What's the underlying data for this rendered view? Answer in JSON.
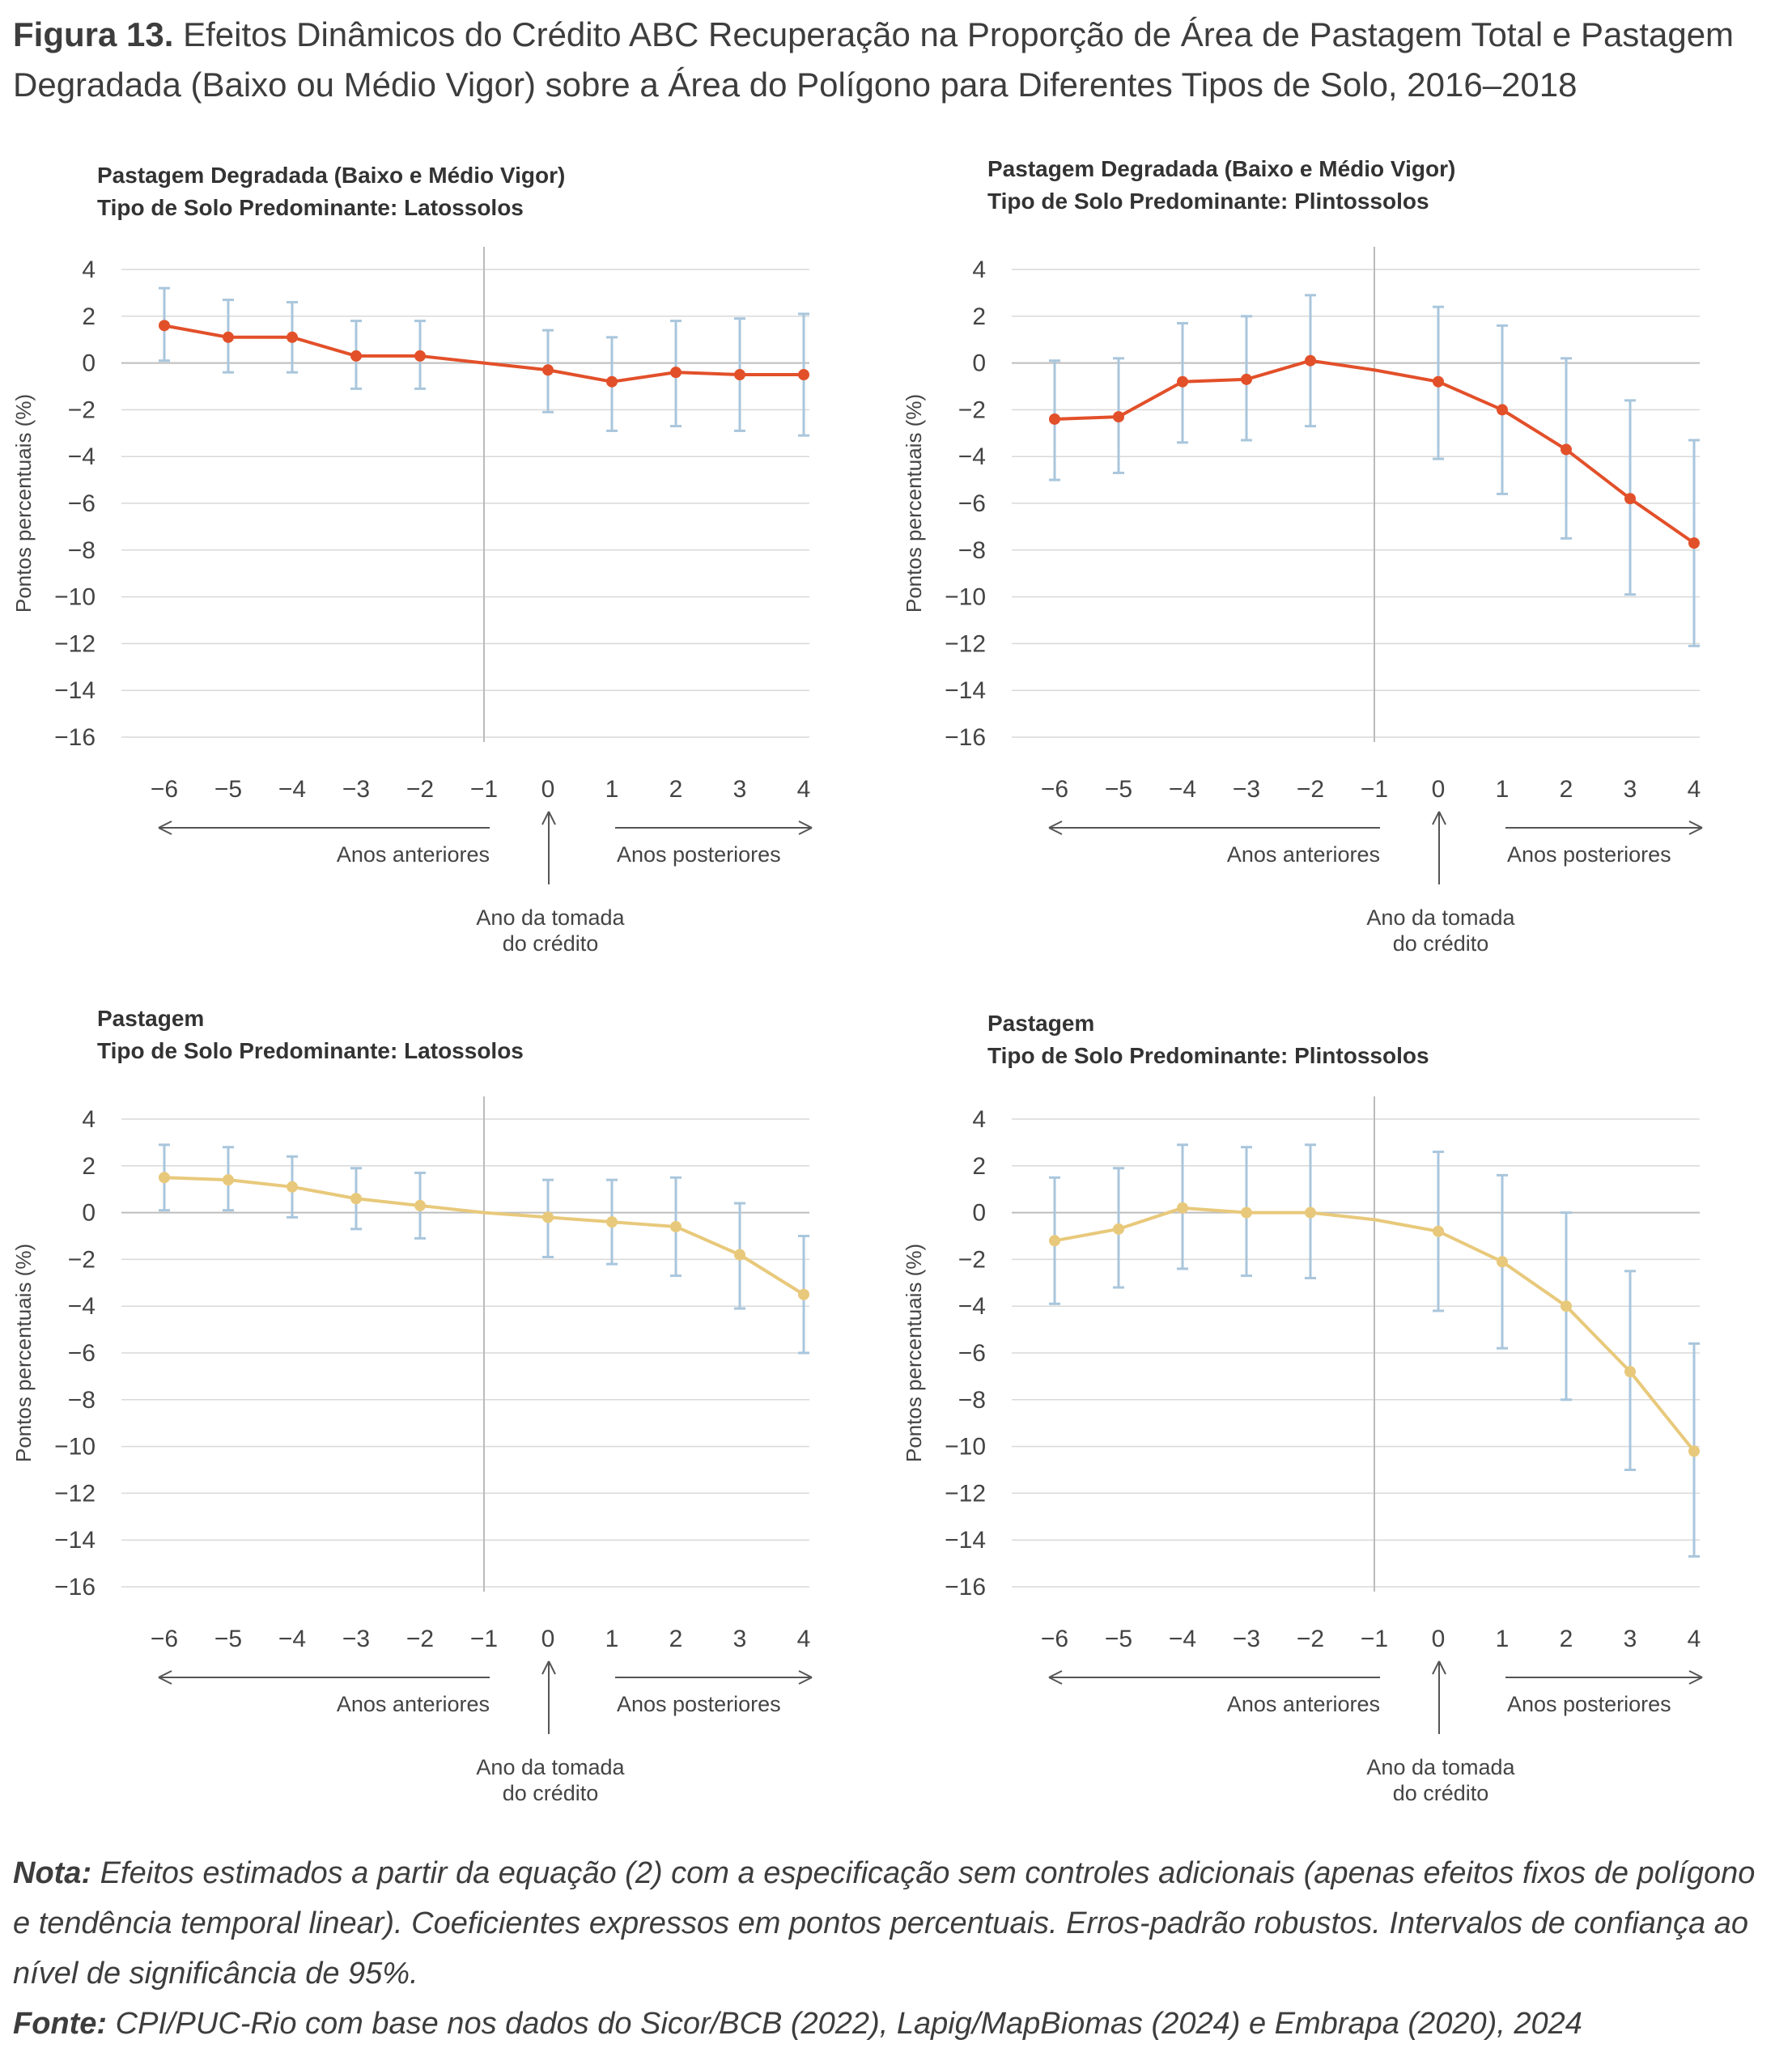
{
  "figure": {
    "label": "Figura 13.",
    "title": "Efeitos Dinâmicos do Crédito ABC Recuperação na Proporção de Área de Pastagem Total e Pastagem Degradada (Baixo ou Médio Vigor) sobre a Área do Polígono para Diferentes Tipos de Solo, 2016–2018"
  },
  "colors": {
    "degradada": "#e2502a",
    "pastagem": "#e8c97b",
    "error_bar": "#a9c6dc",
    "gridline": "#d9d9d9",
    "axis": "#bbbbbb"
  },
  "chart_data": [
    {
      "type": "line",
      "title_line1": "Pastagem Degradada (Baixo e Médio Vigor)",
      "title_line2": "Tipo de Solo Predominante: Latossolos",
      "ylabel": "Pontos percentuais (%)",
      "ylim": [
        -16,
        4
      ],
      "yticks": [
        "4",
        "2",
        "0",
        "−2",
        "−4",
        "−6",
        "−8",
        "−10",
        "−12",
        "−14",
        "−16"
      ],
      "xticks": [
        "−6",
        "−5",
        "−4",
        "−3",
        "−2",
        "−1",
        "0",
        "1",
        "2",
        "3",
        "4"
      ],
      "x": [
        -6,
        -5,
        -4,
        -3,
        -2,
        -1,
        0,
        1,
        2,
        3,
        4
      ],
      "series": [
        {
          "color": "#e2502a",
          "values": [
            1.6,
            1.1,
            1.1,
            0.3,
            0.3,
            0,
            -0.3,
            -0.8,
            -0.4,
            -0.5,
            -0.5
          ],
          "lower": [
            0.1,
            -0.4,
            -0.4,
            -1.1,
            -1.1,
            null,
            -2.1,
            -2.9,
            -2.7,
            -2.9,
            -3.1
          ],
          "upper": [
            3.2,
            2.7,
            2.6,
            1.8,
            1.8,
            null,
            1.4,
            1.1,
            1.8,
            1.9,
            2.1
          ]
        }
      ],
      "annotations": {
        "before": "Anos anteriores",
        "after": "Anos posteriores",
        "event_line1": "Ano da tomada",
        "event_line2": "do crédito"
      }
    },
    {
      "type": "line",
      "title_line1": "Pastagem Degradada (Baixo e Médio Vigor)",
      "title_line2": "Tipo de Solo Predominante: Plintossolos",
      "ylabel": "Pontos percentuais (%)",
      "ylim": [
        -16,
        4
      ],
      "yticks": [
        "4",
        "2",
        "0",
        "−2",
        "−4",
        "−6",
        "−8",
        "−10",
        "−12",
        "−14",
        "−16"
      ],
      "xticks": [
        "−6",
        "−5",
        "−4",
        "−3",
        "−2",
        "−1",
        "0",
        "1",
        "2",
        "3",
        "4"
      ],
      "x": [
        -6,
        -5,
        -4,
        -3,
        -2,
        -1,
        0,
        1,
        2,
        3,
        4
      ],
      "series": [
        {
          "color": "#e2502a",
          "values": [
            -2.4,
            -2.3,
            -0.8,
            -0.7,
            0.1,
            -0.3,
            -0.8,
            -2,
            -3.7,
            -5.8,
            -7.7
          ],
          "lower": [
            -5,
            -4.7,
            -3.4,
            -3.3,
            -2.7,
            null,
            -4.1,
            -5.6,
            -7.5,
            -9.9,
            -12.1
          ],
          "upper": [
            0.1,
            0.2,
            1.7,
            2,
            2.9,
            null,
            2.4,
            1.6,
            0.2,
            -1.6,
            -3.3
          ]
        }
      ],
      "annotations": {
        "before": "Anos anteriores",
        "after": "Anos posteriores",
        "event_line1": "Ano da tomada",
        "event_line2": "do crédito"
      }
    },
    {
      "type": "line",
      "title_line1": "Pastagem",
      "title_line2": "Tipo de Solo Predominante: Latossolos",
      "ylabel": "Pontos percentuais (%)",
      "ylim": [
        -16,
        4
      ],
      "yticks": [
        "4",
        "2",
        "0",
        "−2",
        "−4",
        "−6",
        "−8",
        "−10",
        "−12",
        "−14",
        "−16"
      ],
      "xticks": [
        "−6",
        "−5",
        "−4",
        "−3",
        "−2",
        "−1",
        "0",
        "1",
        "2",
        "3",
        "4"
      ],
      "x": [
        -6,
        -5,
        -4,
        -3,
        -2,
        -1,
        0,
        1,
        2,
        3,
        4
      ],
      "series": [
        {
          "color": "#e8c97b",
          "values": [
            1.5,
            1.4,
            1.1,
            0.6,
            0.3,
            0,
            -0.2,
            -0.4,
            -0.6,
            -1.8,
            -3.5
          ],
          "lower": [
            0.1,
            0.1,
            -0.2,
            -0.7,
            -1.1,
            null,
            -1.9,
            -2.2,
            -2.7,
            -4.1,
            -6
          ],
          "upper": [
            2.9,
            2.8,
            2.4,
            1.9,
            1.7,
            null,
            1.4,
            1.4,
            1.5,
            0.4,
            -1
          ]
        }
      ],
      "annotations": {
        "before": "Anos anteriores",
        "after": "Anos posteriores",
        "event_line1": "Ano da tomada",
        "event_line2": "do crédito"
      }
    },
    {
      "type": "line",
      "title_line1": "Pastagem",
      "title_line2": "Tipo de Solo Predominante: Plintossolos",
      "ylabel": "Pontos percentuais (%)",
      "ylim": [
        -16,
        4
      ],
      "yticks": [
        "4",
        "2",
        "0",
        "−2",
        "−4",
        "−6",
        "−8",
        "−10",
        "−12",
        "−14",
        "−16"
      ],
      "xticks": [
        "−6",
        "−5",
        "−4",
        "−3",
        "−2",
        "−1",
        "0",
        "1",
        "2",
        "3",
        "4"
      ],
      "x": [
        -6,
        -5,
        -4,
        -3,
        -2,
        -1,
        0,
        1,
        2,
        3,
        4
      ],
      "series": [
        {
          "color": "#e8c97b",
          "values": [
            -1.2,
            -0.7,
            0.2,
            0,
            0,
            -0.3,
            -0.8,
            -2.1,
            -4,
            -6.8,
            -10.2
          ],
          "lower": [
            -3.9,
            -3.2,
            -2.4,
            -2.7,
            -2.8,
            null,
            -4.2,
            -5.8,
            -8,
            -11,
            -14.7
          ],
          "upper": [
            1.5,
            1.9,
            2.9,
            2.8,
            2.9,
            null,
            2.6,
            1.6,
            0,
            -2.5,
            -5.6
          ]
        }
      ],
      "annotations": {
        "before": "Anos anteriores",
        "after": "Anos posteriores",
        "event_line1": "Ano da tomada",
        "event_line2": "do crédito"
      }
    }
  ],
  "notes": {
    "nota_label": "Nota:",
    "nota_text": "Efeitos estimados a partir da equação (2) com a especificação sem controles adicionais (apenas efeitos fixos de polígono e tendência temporal linear). Coeficientes expressos em pontos percentuais. Erros-padrão robustos. Intervalos de confiança ao nível de significância de 95%.",
    "fonte_label": "Fonte:",
    "fonte_text": "CPI/PUC-Rio com base nos dados do Sicor/BCB (2022), Lapig/MapBiomas (2024) e Embrapa (2020), 2024"
  }
}
